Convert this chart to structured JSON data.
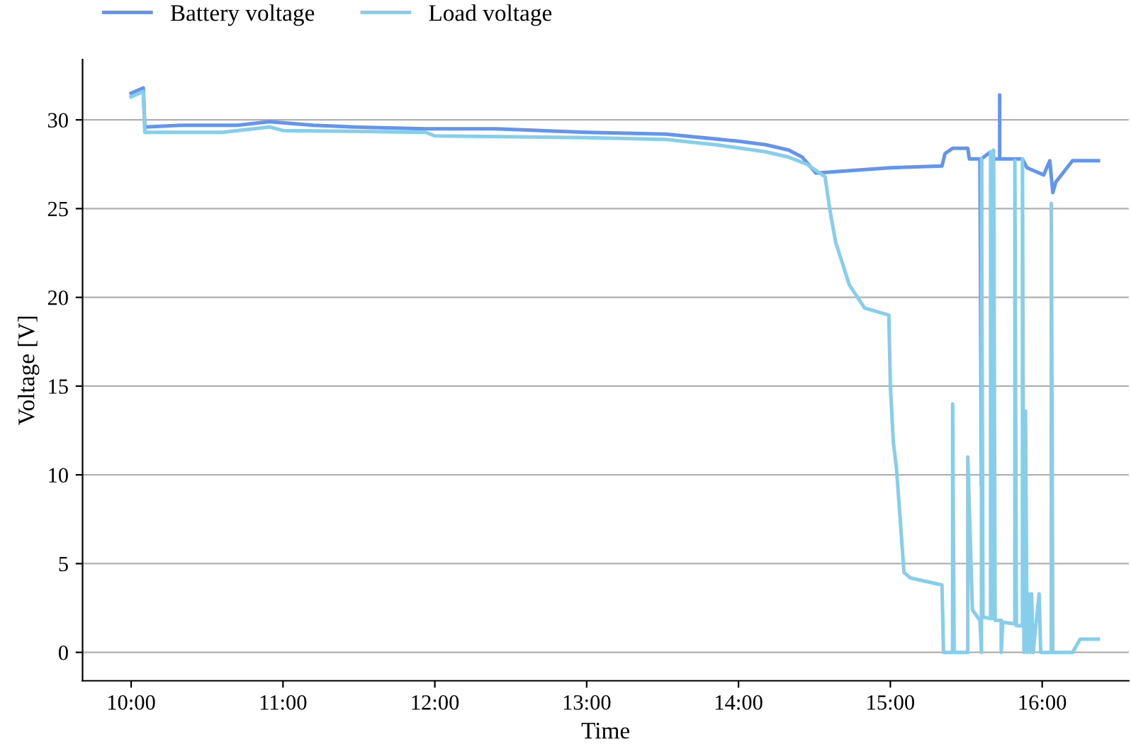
{
  "chart_data": {
    "type": "line",
    "xlabel": "Time",
    "ylabel": "Voltage [V]",
    "xlim": [
      9.68,
      16.57
    ],
    "ylim": [
      -1.6,
      33.4
    ],
    "xticks": [
      {
        "value": 10,
        "label": "10:00"
      },
      {
        "value": 11,
        "label": "11:00"
      },
      {
        "value": 12,
        "label": "12:00"
      },
      {
        "value": 13,
        "label": "13:00"
      },
      {
        "value": 14,
        "label": "14:00"
      },
      {
        "value": 15,
        "label": "15:00"
      },
      {
        "value": 16,
        "label": "16:00"
      }
    ],
    "yticks": [
      0,
      5,
      10,
      15,
      20,
      25,
      30
    ],
    "grid": "y",
    "legend": "top left",
    "line_style": "solid",
    "marker": "none",
    "series": [
      {
        "name": "Battery voltage",
        "color": "#6495ed",
        "x": [
          10.0,
          10.08,
          10.09,
          10.35,
          10.7,
          10.91,
          11.2,
          11.47,
          11.94,
          12.4,
          13.0,
          13.52,
          14.0,
          14.18,
          14.33,
          14.42,
          14.51,
          15.0,
          15.34,
          15.36,
          15.41,
          15.51,
          15.52,
          15.59,
          15.6,
          15.6,
          15.66,
          15.68,
          15.72,
          15.72,
          15.72,
          15.87,
          15.9,
          16.01,
          16.05,
          16.07,
          16.09,
          16.2,
          16.37
        ],
        "values": [
          31.5,
          31.8,
          29.6,
          29.7,
          29.7,
          29.9,
          29.7,
          29.6,
          29.5,
          29.5,
          29.3,
          29.2,
          28.8,
          28.6,
          28.3,
          27.9,
          27.0,
          27.3,
          27.4,
          28.1,
          28.4,
          28.4,
          27.8,
          27.8,
          9.4,
          27.8,
          28.2,
          27.8,
          27.8,
          31.4,
          27.8,
          27.8,
          27.3,
          26.9,
          27.7,
          25.9,
          26.5,
          27.7,
          27.7
        ]
      },
      {
        "name": "Load voltage",
        "color": "#87ceeb",
        "x": [
          10.0,
          10.08,
          10.09,
          10.6,
          10.91,
          11.0,
          11.94,
          12.0,
          13.0,
          13.52,
          13.85,
          14.18,
          14.33,
          14.45,
          14.57,
          14.6,
          14.64,
          14.73,
          14.83,
          14.99,
          15.0,
          15.02,
          15.04,
          15.09,
          15.13,
          15.34,
          15.35,
          15.41,
          15.41,
          15.42,
          15.51,
          15.51,
          15.54,
          15.59,
          15.6,
          15.6,
          15.61,
          15.66,
          15.66,
          15.67,
          15.68,
          15.69,
          15.73,
          15.73,
          15.74,
          15.82,
          15.82,
          15.83,
          15.87,
          15.87,
          15.88,
          15.89,
          15.9,
          15.91,
          15.92,
          15.93,
          15.94,
          15.98,
          15.99,
          16.06,
          16.06,
          16.07,
          16.2,
          16.25,
          16.37
        ],
        "values": [
          31.3,
          31.6,
          29.3,
          29.3,
          29.6,
          29.4,
          29.3,
          29.1,
          29.0,
          28.9,
          28.6,
          28.2,
          27.9,
          27.5,
          26.8,
          25.0,
          23.1,
          20.7,
          19.4,
          19.0,
          15.0,
          11.8,
          10.4,
          4.5,
          4.2,
          3.8,
          0,
          0,
          14.0,
          0,
          0,
          11.0,
          2.4,
          1.8,
          0,
          27.8,
          2.0,
          1.9,
          28.2,
          1.9,
          28.3,
          1.8,
          1.8,
          0,
          1.7,
          1.6,
          27.7,
          1.5,
          1.5,
          27.8,
          0,
          13.6,
          0,
          3.3,
          0,
          3.3,
          0,
          3.3,
          0,
          0,
          25.3,
          0,
          0,
          0.75,
          0.75
        ]
      }
    ]
  }
}
